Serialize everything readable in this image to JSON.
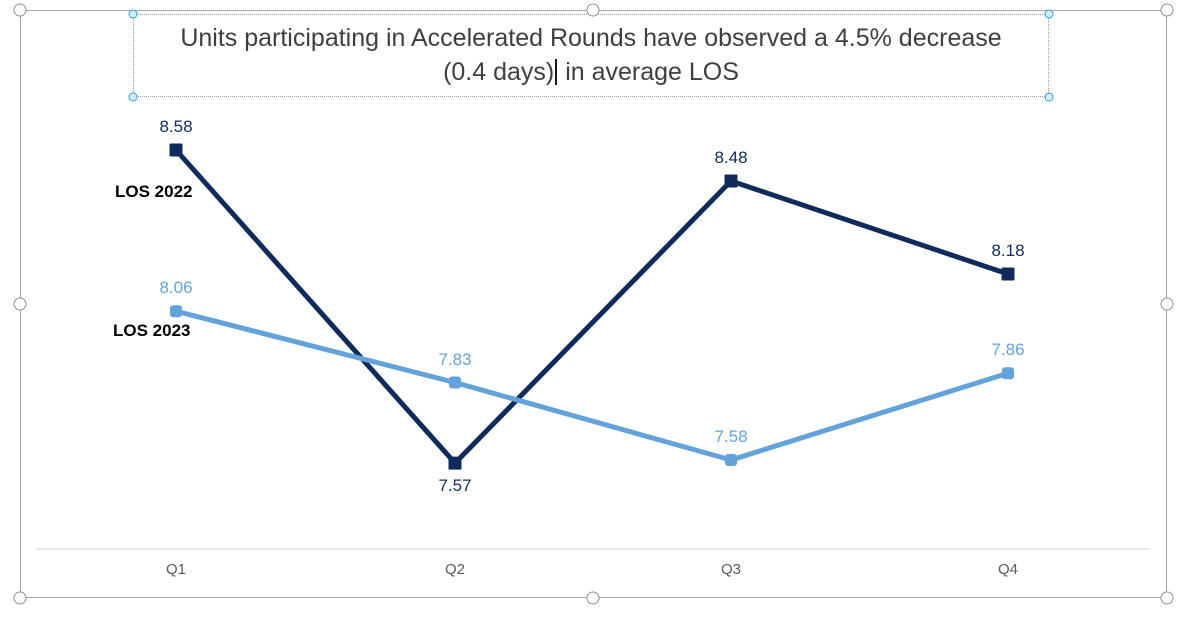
{
  "title": {
    "line1": "Units participating in Accelerated Rounds have observed a 4.5% decrease",
    "line2_before_caret": "(0.4 days)",
    "line2_after_caret": " in average LOS"
  },
  "chart_data": {
    "type": "line",
    "categories": [
      "Q1",
      "Q2",
      "Q3",
      "Q4"
    ],
    "series": [
      {
        "name": "LOS 2022",
        "values": [
          8.58,
          7.57,
          8.48,
          8.18
        ],
        "labels": [
          "8.58",
          "7.57",
          "8.48",
          "8.18"
        ],
        "label_positions": [
          "above",
          "below",
          "above",
          "above"
        ],
        "color": "#0f2b5b",
        "marker": "square"
      },
      {
        "name": "LOS 2023",
        "values": [
          8.06,
          7.83,
          7.58,
          7.86
        ],
        "labels": [
          "8.06",
          "7.83",
          "7.58",
          "7.86"
        ],
        "label_positions": [
          "above",
          "above",
          "above",
          "above"
        ],
        "color": "#63a2db",
        "marker": "rounded-square"
      }
    ],
    "title": "Units participating in Accelerated Rounds have observed a 4.5% decrease (0.4 days) in average LOS",
    "xlabel": "",
    "ylabel": "",
    "ylim": [
      7.3,
      8.7
    ],
    "grid": false,
    "data_labels": true,
    "legend_position": "series-name-at-start",
    "value_format": "0.00"
  },
  "colors": {
    "navy_series": "#0f2b5b",
    "blue_series": "#63a2db",
    "title_text": "#3f3f3f",
    "axis_text": "#5a5a5a",
    "axis_line": "#d6d6d6",
    "frame_gray": "#a8a8a8",
    "handle_blue": "#2f9cde"
  }
}
